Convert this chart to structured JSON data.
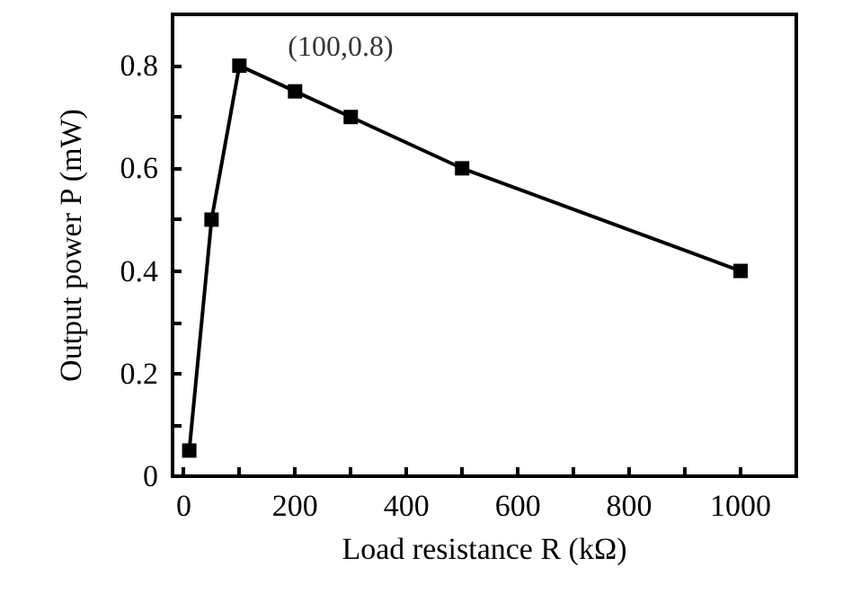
{
  "chart_data": {
    "type": "line",
    "xlabel": "Load resistance R (kΩ)",
    "ylabel": "Output power P (mW)",
    "x": [
      10,
      50,
      100,
      200,
      300,
      500,
      1000
    ],
    "series": [
      {
        "color": "#000000",
        "values": [
          0.05,
          0.5,
          0.8,
          0.75,
          0.7,
          0.6,
          0.4
        ]
      }
    ],
    "xlim": [
      -20,
      1100
    ],
    "xticks": [
      0,
      {
        "value": 100,
        "label": null
      },
      200,
      {
        "value": 300,
        "label": null
      },
      400,
      {
        "value": 500,
        "label": null
      },
      600,
      {
        "value": 700,
        "label": null
      },
      800,
      {
        "value": 900,
        "label": null
      },
      1000
    ],
    "ylim": [
      0,
      0.9
    ],
    "yticks": [
      "0",
      {
        "value": 0.1,
        "label": null
      },
      0.2,
      {
        "value": 0.3,
        "label": null
      },
      0.4,
      {
        "value": 0.5,
        "label": null
      },
      0.6,
      {
        "value": 0.7,
        "label": null
      },
      0.8
    ],
    "annotations": [
      {
        "text": "(100,0.8)",
        "x": 100,
        "y": 0.8
      }
    ],
    "marker": "square",
    "line_style": "solid",
    "grid": false
  }
}
